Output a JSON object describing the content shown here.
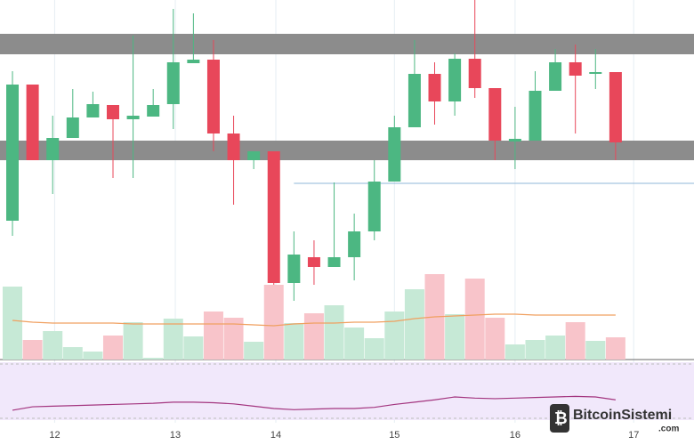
{
  "chart_data": {
    "type": "candlestick",
    "x": [
      0,
      1,
      2,
      3,
      4,
      5,
      6,
      7,
      8,
      9,
      10,
      11,
      12,
      13,
      14,
      15,
      16,
      17,
      18,
      19,
      20,
      21,
      22,
      23,
      24,
      25,
      26,
      27,
      28,
      29,
      30
    ],
    "open": [
      152,
      305,
      220,
      245,
      268,
      282,
      266,
      269,
      283,
      329,
      333,
      250,
      220,
      230,
      82,
      111,
      100,
      111,
      140,
      196,
      257,
      317,
      286,
      334,
      301,
      241,
      242,
      298,
      330,
      317,
      319
    ],
    "high": [
      320,
      305,
      270,
      300,
      297,
      282,
      360,
      300,
      390,
      385,
      355,
      270,
      230,
      230,
      140,
      130,
      195,
      160,
      220,
      270,
      355,
      330,
      340,
      400,
      301,
      280,
      320,
      345,
      350,
      345,
      319
    ],
    "low": [
      135,
      220,
      182,
      245,
      268,
      200,
      200,
      269,
      255,
      329,
      230,
      170,
      210,
      80,
      62,
      80,
      100,
      85,
      130,
      196,
      257,
      260,
      270,
      290,
      220,
      210,
      242,
      298,
      250,
      300,
      220
    ],
    "close": [
      305,
      220,
      245,
      268,
      283,
      266,
      270,
      282,
      330,
      333,
      250,
      220,
      230,
      82,
      114,
      100,
      111,
      140,
      196,
      257,
      317,
      286,
      334,
      301,
      242,
      244,
      298,
      330,
      315,
      319,
      240
    ],
    "volume": [
      82,
      22,
      32,
      14,
      9,
      27,
      42,
      2,
      46,
      26,
      54,
      47,
      20,
      84,
      41,
      52,
      61,
      36,
      24,
      54,
      79,
      96,
      51,
      91,
      47,
      17,
      22,
      27,
      42,
      21,
      25
    ],
    "volume_ma": [
      44,
      42,
      41,
      41,
      41,
      41,
      40,
      40,
      40,
      40,
      40,
      40,
      39,
      38,
      40,
      41,
      41,
      42,
      42,
      43,
      46,
      48,
      49,
      50,
      51,
      51,
      50,
      50,
      50,
      50,
      50
    ],
    "rsi": [
      17,
      23,
      24,
      25,
      26,
      27,
      28,
      29,
      31,
      31,
      30,
      28,
      24,
      20,
      18,
      19,
      20,
      20,
      22,
      27,
      31,
      35,
      40,
      38,
      37,
      38,
      39,
      40,
      41,
      40,
      35
    ],
    "xlim": [
      -0.62,
      33.9
    ],
    "ylim": [
      0,
      400
    ],
    "volume_ylim": [
      0,
      110
    ],
    "rsi_ylim": [
      0,
      100
    ],
    "xticks": [
      {
        "value": 2.1,
        "label": "12"
      },
      {
        "value": 8.1,
        "label": "13"
      },
      {
        "value": 13.1,
        "label": "14"
      },
      {
        "value": 19.0,
        "label": "15"
      },
      {
        "value": 25.0,
        "label": "16"
      },
      {
        "value": 30.9,
        "label": "17"
      }
    ],
    "zones": [
      [
        339,
        362
      ],
      [
        220,
        242
      ]
    ],
    "level": 194,
    "up_color": "#4cb782",
    "down_color": "#e8475a",
    "up_volume_color": "#c6e9d6",
    "down_volume_color": "#f8c4ca",
    "ma_color": "#f0a060",
    "rsi_color": "#a3357f",
    "grid": true
  },
  "watermark": {
    "name": "BitcoinSistemi",
    "domain": ".com"
  }
}
